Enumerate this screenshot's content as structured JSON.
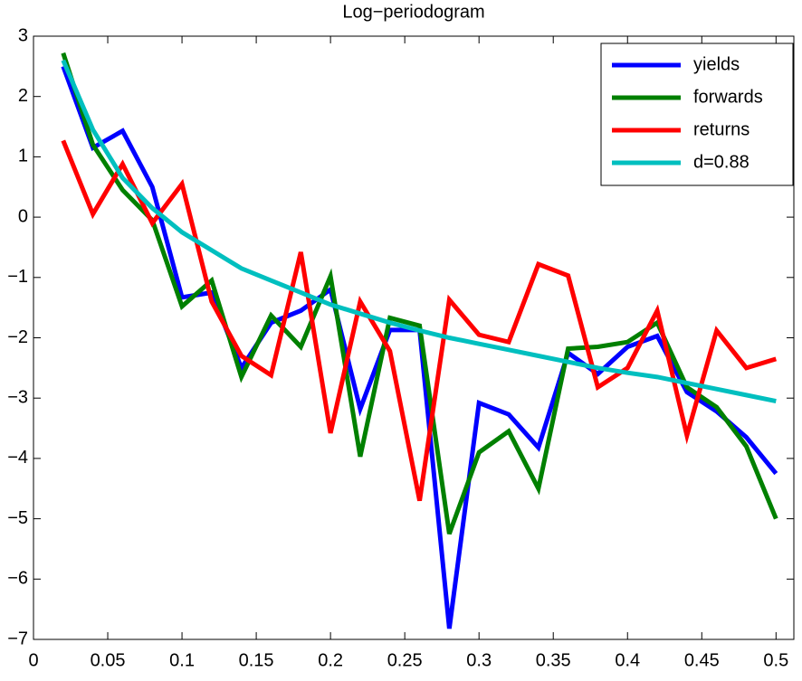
{
  "chart_data": {
    "type": "line",
    "title": "Log−periodogram",
    "x": [
      0.02,
      0.04,
      0.06,
      0.08,
      0.1,
      0.12,
      0.14,
      0.16,
      0.18,
      0.2,
      0.22,
      0.24,
      0.26,
      0.28,
      0.3,
      0.32,
      0.34,
      0.36,
      0.38,
      0.4,
      0.42,
      0.44,
      0.46,
      0.48,
      0.5
    ],
    "series": [
      {
        "name": "yields",
        "color": "#0000ff",
        "values": [
          2.5,
          1.15,
          1.43,
          0.5,
          -1.33,
          -1.25,
          -2.5,
          -1.75,
          -1.55,
          -1.2,
          -3.18,
          -1.87,
          -1.87,
          -6.82,
          -3.08,
          -3.27,
          -3.82,
          -2.25,
          -2.6,
          -2.15,
          -1.97,
          -2.9,
          -3.22,
          -3.65,
          -4.25
        ]
      },
      {
        "name": "forwards",
        "color": "#008000",
        "values": [
          2.72,
          1.2,
          0.45,
          -0.05,
          -1.48,
          -1.05,
          -2.65,
          -1.63,
          -2.15,
          -0.98,
          -3.97,
          -1.67,
          -1.8,
          -5.25,
          -3.9,
          -3.55,
          -4.5,
          -2.18,
          -2.15,
          -2.07,
          -1.75,
          -2.82,
          -3.15,
          -3.8,
          -5.0
        ]
      },
      {
        "name": "returns",
        "color": "#ff0000",
        "values": [
          1.27,
          0.05,
          0.88,
          -0.1,
          0.55,
          -1.4,
          -2.3,
          -2.62,
          -0.58,
          -3.58,
          -1.4,
          -2.22,
          -4.7,
          -1.37,
          -1.95,
          -2.07,
          -0.78,
          -0.97,
          -2.82,
          -2.5,
          -1.55,
          -3.62,
          -1.88,
          -2.5,
          -2.35
        ]
      },
      {
        "name": "d=0.88",
        "color": "#00bfbf",
        "values": [
          2.6,
          1.45,
          0.65,
          0.15,
          -0.25,
          -0.55,
          -0.85,
          -1.05,
          -1.25,
          -1.45,
          -1.6,
          -1.75,
          -1.88,
          -2.0,
          -2.1,
          -2.2,
          -2.3,
          -2.4,
          -2.5,
          -2.58,
          -2.65,
          -2.75,
          -2.85,
          -2.95,
          -3.05
        ]
      }
    ],
    "xlim": [
      0,
      0.512
    ],
    "ylim": [
      -7,
      3
    ],
    "xticks": [
      0,
      0.05,
      0.1,
      0.15,
      0.2,
      0.25,
      0.3,
      0.35,
      0.4,
      0.45,
      0.5
    ],
    "yticks": [
      {
        "value": -7,
        "label": "−7"
      },
      {
        "value": -6,
        "label": "−6"
      },
      {
        "value": -5,
        "label": "−5"
      },
      {
        "value": -4,
        "label": "−4"
      },
      {
        "value": -3,
        "label": "−3"
      },
      {
        "value": -2,
        "label": "−2"
      },
      {
        "value": -1,
        "label": "−1"
      },
      0,
      1,
      2,
      3
    ],
    "grid": false,
    "legend": "upper right"
  }
}
